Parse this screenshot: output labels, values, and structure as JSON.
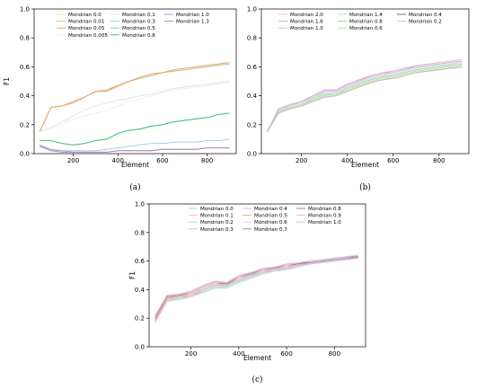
{
  "chart_data": [
    {
      "type": "line",
      "caption": "(a)",
      "xlabel": "Element",
      "ylabel": "F1",
      "xlim": [
        25,
        930
      ],
      "ylim": [
        0.0,
        1.0
      ],
      "xticks": [
        200,
        400,
        600,
        800
      ],
      "yticks": [
        0.0,
        0.2,
        0.4,
        0.6,
        0.8,
        1.0
      ],
      "legend_columns": 3,
      "x": [
        50,
        100,
        150,
        200,
        250,
        300,
        350,
        400,
        450,
        500,
        550,
        600,
        650,
        700,
        750,
        800,
        850,
        900
      ],
      "series": [
        {
          "name": "Mondrian 0.0",
          "color": "#f2dc9c",
          "values": [
            0.15,
            0.32,
            0.33,
            0.35,
            0.39,
            0.43,
            0.43,
            0.46,
            0.5,
            0.52,
            0.54,
            0.56,
            0.57,
            0.58,
            0.59,
            0.6,
            0.61,
            0.62
          ]
        },
        {
          "name": "Mondrian 0.01",
          "color": "#c8c28c",
          "values": [
            0.15,
            0.32,
            0.33,
            0.35,
            0.39,
            0.43,
            0.43,
            0.47,
            0.5,
            0.52,
            0.54,
            0.56,
            0.57,
            0.58,
            0.59,
            0.6,
            0.61,
            0.62
          ]
        },
        {
          "name": "Mondrian 0.05",
          "color": "#e7a36e",
          "values": [
            0.15,
            0.32,
            0.33,
            0.36,
            0.39,
            0.43,
            0.44,
            0.47,
            0.5,
            0.53,
            0.55,
            0.56,
            0.58,
            0.59,
            0.6,
            0.61,
            0.62,
            0.63
          ]
        },
        {
          "name": "Mondrian 0.005",
          "color": "#efefef",
          "values": [
            0.15,
            0.17,
            0.2,
            0.24,
            0.26,
            0.28,
            0.3,
            0.33,
            0.36,
            0.38,
            0.4,
            0.42,
            0.44,
            0.45,
            0.46,
            0.47,
            0.48,
            0.49
          ]
        },
        {
          "name": "Mondrian 0.1",
          "color": "#e4e4e4",
          "values": [
            0.15,
            0.18,
            0.22,
            0.26,
            0.3,
            0.33,
            0.35,
            0.37,
            0.38,
            0.4,
            0.41,
            0.43,
            0.45,
            0.46,
            0.47,
            0.48,
            0.49,
            0.5
          ]
        },
        {
          "name": "Mondrian 0.3",
          "color": "#a4cce4",
          "values": [
            0.06,
            0.02,
            0.02,
            0.02,
            0.02,
            0.02,
            0.03,
            0.04,
            0.05,
            0.06,
            0.07,
            0.07,
            0.08,
            0.08,
            0.08,
            0.09,
            0.09,
            0.1
          ]
        },
        {
          "name": "Mondrian 0.5",
          "color": "#86dca6",
          "values": [
            0.09,
            0.09,
            0.07,
            0.06,
            0.07,
            0.09,
            0.1,
            0.14,
            0.16,
            0.17,
            0.19,
            0.2,
            0.22,
            0.23,
            0.24,
            0.25,
            0.27,
            0.28
          ]
        },
        {
          "name": "Mondrian 0.8",
          "color": "#4cbd7c",
          "values": [
            0.09,
            0.09,
            0.07,
            0.06,
            0.07,
            0.09,
            0.1,
            0.14,
            0.16,
            0.17,
            0.19,
            0.2,
            0.22,
            0.23,
            0.24,
            0.25,
            0.27,
            0.28
          ]
        },
        {
          "name": "Mondrian 1.0",
          "color": "#b49ed8",
          "values": [
            0.06,
            0.03,
            0.02,
            0.01,
            0.01,
            0.01,
            0.01,
            0.02,
            0.02,
            0.02,
            0.02,
            0.03,
            0.03,
            0.03,
            0.03,
            0.04,
            0.04,
            0.04
          ]
        },
        {
          "name": "Mondrian 1.3",
          "color": "#b08ab8",
          "values": [
            0.05,
            0.02,
            0.01,
            0.01,
            0.01,
            0.01,
            0.01,
            0.02,
            0.02,
            0.02,
            0.02,
            0.03,
            0.03,
            0.03,
            0.03,
            0.04,
            0.04,
            0.04
          ]
        }
      ]
    },
    {
      "type": "line",
      "caption": "(b)",
      "xlabel": "Element",
      "ylabel": "",
      "xlim": [
        25,
        930
      ],
      "ylim": [
        0.0,
        1.0
      ],
      "xticks": [
        200,
        400,
        600,
        800
      ],
      "yticks": [
        0.0,
        0.2,
        0.4,
        0.6,
        0.8,
        1.0
      ],
      "legend_columns": 3,
      "x": [
        50,
        100,
        150,
        200,
        250,
        300,
        350,
        400,
        450,
        500,
        550,
        600,
        650,
        700,
        750,
        800,
        850,
        900
      ],
      "series": [
        {
          "name": "Mondrian 2.0",
          "color": "#f3b6c8",
          "values": [
            0.15,
            0.31,
            0.34,
            0.36,
            0.4,
            0.44,
            0.44,
            0.48,
            0.51,
            0.54,
            0.56,
            0.57,
            0.59,
            0.61,
            0.62,
            0.63,
            0.64,
            0.65
          ]
        },
        {
          "name": "Mondrian 1.6",
          "color": "#e2a8c4",
          "values": [
            0.15,
            0.31,
            0.34,
            0.36,
            0.4,
            0.44,
            0.44,
            0.48,
            0.51,
            0.53,
            0.55,
            0.57,
            0.59,
            0.6,
            0.61,
            0.62,
            0.63,
            0.64
          ]
        },
        {
          "name": "Mondrian 1.0",
          "color": "#d6b4e0",
          "values": [
            0.15,
            0.3,
            0.33,
            0.36,
            0.39,
            0.43,
            0.43,
            0.47,
            0.5,
            0.53,
            0.55,
            0.56,
            0.58,
            0.6,
            0.61,
            0.62,
            0.63,
            0.64
          ]
        },
        {
          "name": "Mondrian 1.4",
          "color": "#b0e0e8",
          "values": [
            0.15,
            0.3,
            0.33,
            0.35,
            0.39,
            0.42,
            0.42,
            0.46,
            0.49,
            0.52,
            0.54,
            0.55,
            0.57,
            0.59,
            0.6,
            0.61,
            0.62,
            0.63
          ]
        },
        {
          "name": "Mondrian 0.8",
          "color": "#9cd6a4",
          "values": [
            0.15,
            0.29,
            0.32,
            0.34,
            0.38,
            0.41,
            0.41,
            0.45,
            0.48,
            0.51,
            0.53,
            0.54,
            0.56,
            0.58,
            0.59,
            0.6,
            0.61,
            0.62
          ]
        },
        {
          "name": "Mondrian 0.6",
          "color": "#c8dc94",
          "values": [
            0.15,
            0.29,
            0.32,
            0.34,
            0.37,
            0.4,
            0.41,
            0.44,
            0.47,
            0.5,
            0.52,
            0.53,
            0.55,
            0.57,
            0.58,
            0.59,
            0.6,
            0.61
          ]
        },
        {
          "name": "Mondrian 0.4",
          "color": "#6c6c9c",
          "values": [
            0.15,
            0.28,
            0.31,
            0.33,
            0.36,
            0.39,
            0.4,
            0.43,
            0.46,
            0.49,
            0.51,
            0.52,
            0.54,
            0.56,
            0.57,
            0.58,
            0.59,
            0.6
          ]
        },
        {
          "name": "Mondrian 0.2",
          "color": "#c8c8c8",
          "values": [
            0.15,
            0.28,
            0.31,
            0.33,
            0.36,
            0.39,
            0.4,
            0.43,
            0.46,
            0.49,
            0.51,
            0.52,
            0.54,
            0.56,
            0.57,
            0.58,
            0.59,
            0.6
          ]
        }
      ]
    },
    {
      "type": "line",
      "caption": "(c)",
      "xlabel": "Element",
      "ylabel": "F1",
      "xlim": [
        25,
        930
      ],
      "ylim": [
        0.0,
        1.0
      ],
      "xticks": [
        200,
        400,
        600,
        800
      ],
      "yticks": [
        0.0,
        0.2,
        0.4,
        0.6,
        0.8,
        1.0
      ],
      "legend_columns": 3,
      "x": [
        50,
        100,
        150,
        200,
        250,
        300,
        350,
        400,
        450,
        500,
        550,
        600,
        650,
        700,
        750,
        800,
        850,
        900
      ],
      "series": [
        {
          "name": "Mondrian 0.0",
          "color": "#a8d4f0",
          "values": [
            0.17,
            0.32,
            0.33,
            0.35,
            0.38,
            0.41,
            0.41,
            0.45,
            0.48,
            0.51,
            0.53,
            0.54,
            0.56,
            0.58,
            0.59,
            0.6,
            0.61,
            0.62
          ]
        },
        {
          "name": "Mondrian 0.1",
          "color": "#f2c4a4",
          "values": [
            0.17,
            0.32,
            0.34,
            0.35,
            0.39,
            0.42,
            0.42,
            0.46,
            0.49,
            0.52,
            0.53,
            0.55,
            0.57,
            0.58,
            0.59,
            0.6,
            0.61,
            0.62
          ]
        },
        {
          "name": "Mondrian 0.2",
          "color": "#b8e0b0",
          "values": [
            0.18,
            0.33,
            0.34,
            0.36,
            0.39,
            0.42,
            0.42,
            0.46,
            0.49,
            0.52,
            0.54,
            0.55,
            0.57,
            0.58,
            0.59,
            0.6,
            0.61,
            0.62
          ]
        },
        {
          "name": "Mondrian 0.3",
          "color": "#f0b4b4",
          "values": [
            0.18,
            0.33,
            0.35,
            0.36,
            0.4,
            0.43,
            0.43,
            0.47,
            0.5,
            0.52,
            0.54,
            0.55,
            0.57,
            0.58,
            0.59,
            0.6,
            0.61,
            0.62
          ]
        },
        {
          "name": "Mondrian 0.4",
          "color": "#d4c0e4",
          "values": [
            0.19,
            0.34,
            0.35,
            0.37,
            0.4,
            0.43,
            0.43,
            0.47,
            0.5,
            0.53,
            0.54,
            0.56,
            0.57,
            0.58,
            0.59,
            0.6,
            0.61,
            0.62
          ]
        },
        {
          "name": "Mondrian 0.5",
          "color": "#d8b89c",
          "values": [
            0.19,
            0.34,
            0.35,
            0.37,
            0.41,
            0.44,
            0.43,
            0.48,
            0.5,
            0.53,
            0.55,
            0.56,
            0.57,
            0.59,
            0.6,
            0.61,
            0.62,
            0.62
          ]
        },
        {
          "name": "Mondrian 0.6",
          "color": "#f0c8e0",
          "values": [
            0.2,
            0.35,
            0.36,
            0.37,
            0.41,
            0.44,
            0.44,
            0.48,
            0.51,
            0.53,
            0.55,
            0.56,
            0.58,
            0.59,
            0.6,
            0.61,
            0.62,
            0.63
          ]
        },
        {
          "name": "Mondrian 0.7",
          "color": "#8c8cbc",
          "values": [
            0.2,
            0.35,
            0.36,
            0.38,
            0.42,
            0.45,
            0.44,
            0.49,
            0.51,
            0.54,
            0.55,
            0.57,
            0.58,
            0.59,
            0.6,
            0.61,
            0.62,
            0.63
          ]
        },
        {
          "name": "Mondrian 0.8",
          "color": "#9c7ca8",
          "values": [
            0.21,
            0.35,
            0.36,
            0.38,
            0.42,
            0.45,
            0.44,
            0.49,
            0.52,
            0.54,
            0.56,
            0.57,
            0.58,
            0.6,
            0.61,
            0.62,
            0.63,
            0.63
          ]
        },
        {
          "name": "Mondrian 0.9",
          "color": "#f0b8c8",
          "values": [
            0.21,
            0.36,
            0.37,
            0.38,
            0.42,
            0.45,
            0.45,
            0.49,
            0.52,
            0.54,
            0.56,
            0.57,
            0.59,
            0.6,
            0.61,
            0.62,
            0.63,
            0.64
          ]
        },
        {
          "name": "Mondrian 1.0",
          "color": "#e4b8d4",
          "values": [
            0.22,
            0.36,
            0.37,
            0.39,
            0.43,
            0.46,
            0.45,
            0.5,
            0.52,
            0.55,
            0.56,
            0.58,
            0.59,
            0.6,
            0.61,
            0.62,
            0.63,
            0.64
          ]
        }
      ]
    }
  ]
}
